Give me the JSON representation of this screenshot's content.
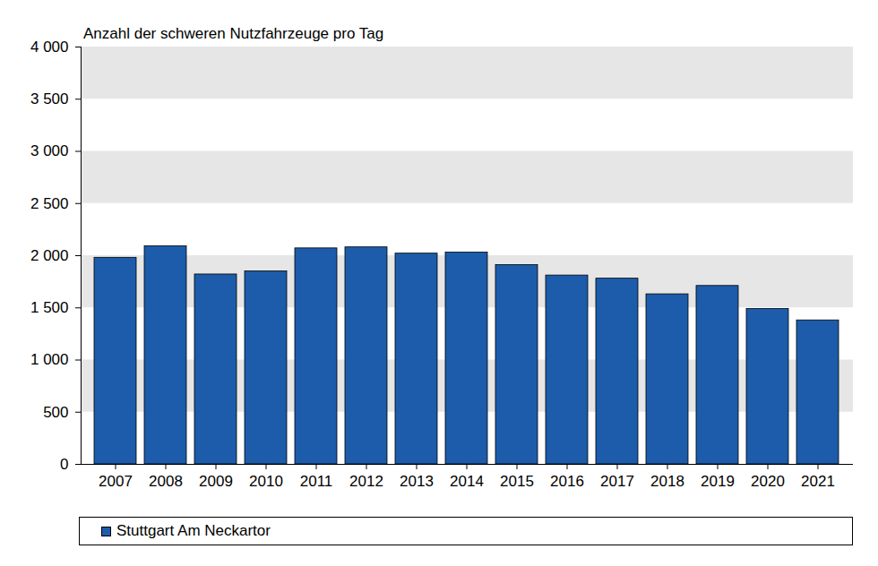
{
  "chart_data": {
    "type": "bar",
    "title": "Anzahl der schweren Nutzfahrzeuge pro Tag",
    "categories": [
      "2007",
      "2008",
      "2009",
      "2010",
      "2011",
      "2012",
      "2013",
      "2014",
      "2015",
      "2016",
      "2017",
      "2018",
      "2019",
      "2020",
      "2021"
    ],
    "series": [
      {
        "name": "Stuttgart Am Neckartor",
        "color": "#1c5caa",
        "values": [
          1980,
          2090,
          1820,
          1850,
          2070,
          2080,
          2020,
          2030,
          1910,
          1810,
          1780,
          1630,
          1710,
          1490,
          1380
        ]
      }
    ],
    "ylim": [
      0,
      4000
    ],
    "yticks": [
      0,
      500,
      {
        "value": 1000,
        "label": "1 000"
      },
      {
        "value": 1500,
        "label": "1 500"
      },
      {
        "value": 2000,
        "label": "2 000"
      },
      {
        "value": 2500,
        "label": "2 500"
      },
      {
        "value": 3000,
        "label": "3 000"
      },
      {
        "value": 3500,
        "label": "3 500"
      },
      {
        "value": 4000,
        "label": "4 000"
      }
    ],
    "grid": true,
    "legend": "bottom"
  }
}
